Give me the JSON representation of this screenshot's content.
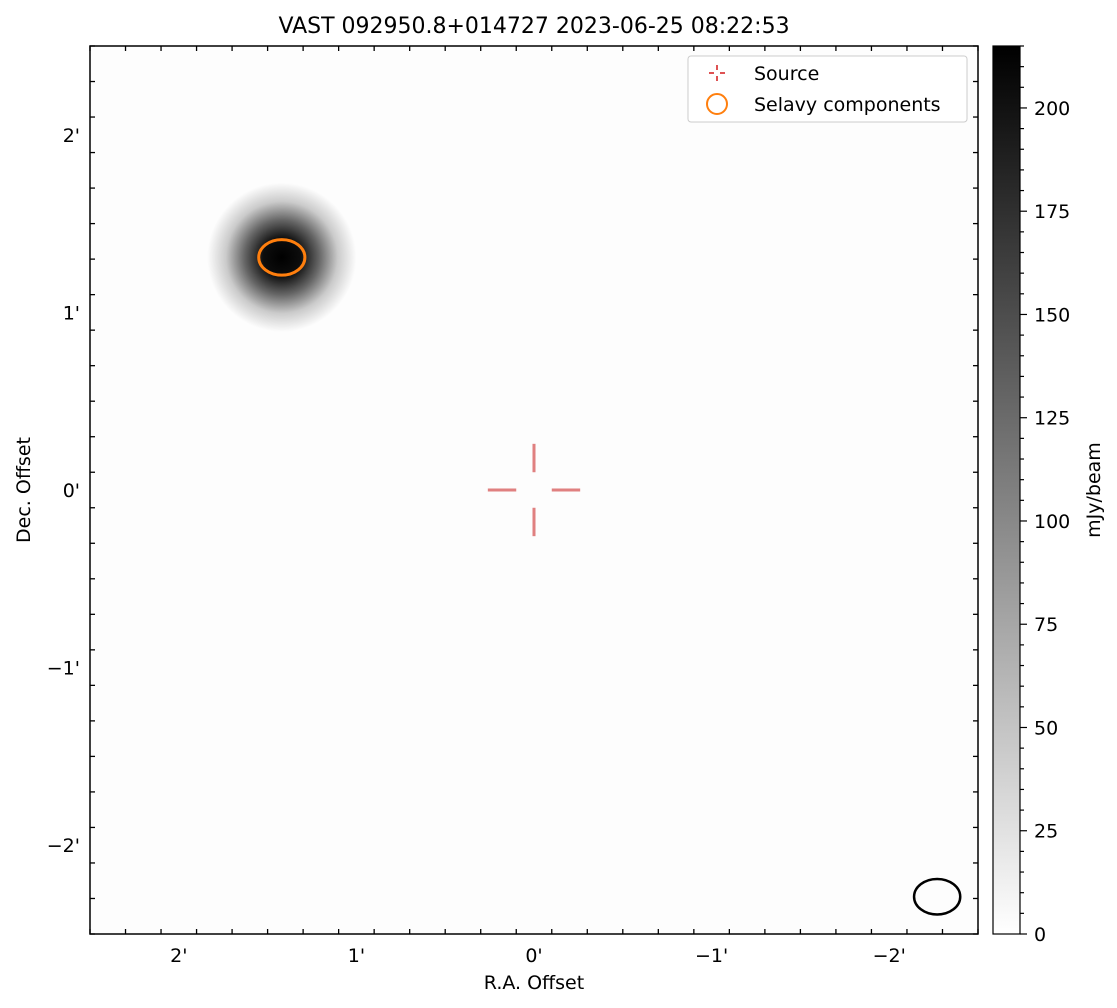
{
  "chart_data": {
    "type": "heatmap",
    "title": "VAST 092950.8+014727 2023-06-25 08:22:53",
    "xlabel": "R.A. Offset",
    "ylabel": "Dec. Offset",
    "x_units": "arcmin",
    "y_units": "arcmin",
    "xlim": [
      2.5,
      -2.5
    ],
    "ylim": [
      -2.5,
      2.5
    ],
    "x_ticks": [
      {
        "value": 2,
        "label": "2'"
      },
      {
        "value": 1,
        "label": "1'"
      },
      {
        "value": 0,
        "label": "0'"
      },
      {
        "value": -1,
        "label": "−1'"
      },
      {
        "value": -2,
        "label": "−2'"
      }
    ],
    "y_ticks": [
      {
        "value": 2,
        "label": "2'"
      },
      {
        "value": 1,
        "label": "1'"
      },
      {
        "value": 0,
        "label": "0'"
      },
      {
        "value": -1,
        "label": "−1'"
      },
      {
        "value": -2,
        "label": "−2'"
      }
    ],
    "colormap": "gray_r",
    "colorbar": {
      "label": "mJy/beam",
      "range": [
        0,
        215
      ],
      "ticks": [
        0,
        25,
        50,
        75,
        100,
        125,
        150,
        175,
        200
      ]
    },
    "bright_source": {
      "ra_offset": 1.42,
      "dec_offset": 1.31,
      "peak_mJy_beam": 215,
      "sigma_arcmin": 0.14
    },
    "target": {
      "ra_offset": 0,
      "dec_offset": 0,
      "marker": "crosshair",
      "color": "#e08080"
    },
    "selavy_components": [
      {
        "ra_offset": 1.42,
        "dec_offset": 1.31,
        "major_arcmin": 0.26,
        "minor_arcmin": 0.2,
        "color": "#ff7f0e"
      }
    ],
    "beam": {
      "ra_offset": -2.27,
      "dec_offset": -2.29,
      "major_arcmin": 0.26,
      "minor_arcmin": 0.2
    },
    "legend": {
      "position": "top-right",
      "entries": [
        {
          "label": "Source",
          "marker": "crosshair",
          "color": "#d62728"
        },
        {
          "label": "Selavy components",
          "marker": "circle",
          "color": "#ff7f0e"
        }
      ]
    },
    "grid": false
  }
}
